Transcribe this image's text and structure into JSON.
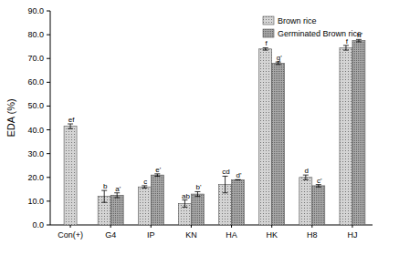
{
  "chart_data": {
    "type": "bar",
    "y_label": "EDA (%)",
    "categories": [
      "Con(+)",
      "G4",
      "IP",
      "KN",
      "HA",
      "HK",
      "H8",
      "HJ"
    ],
    "series": [
      {
        "name": "Brown rice",
        "color": "#d4d4d4",
        "values": [
          41.5,
          12,
          16,
          9,
          17,
          74,
          20,
          74.5
        ],
        "errors": [
          1,
          2.5,
          0.5,
          1.5,
          3.5,
          0.5,
          1,
          1
        ],
        "letters": [
          "ef",
          "b",
          "c",
          "ab",
          "cd",
          "f",
          "d",
          "f"
        ]
      },
      {
        "name": "Germinated Brown rice",
        "color": "#a8a8a8",
        "values": [
          null,
          12.5,
          21,
          13,
          19,
          68,
          16.5,
          77.5
        ],
        "errors": [
          null,
          1,
          0.5,
          1,
          0,
          0.5,
          0.5,
          0.5
        ],
        "letters": [
          null,
          "a'",
          "e'",
          "b'",
          "d'",
          "g'",
          "c'",
          "h'"
        ]
      }
    ],
    "ylim": [
      0,
      90
    ],
    "yticks": [
      {
        "value": 0,
        "label": "0.0"
      },
      {
        "value": 10,
        "label": "10.0"
      },
      {
        "value": 20,
        "label": "20.0"
      },
      {
        "value": 30,
        "label": "30.0"
      },
      {
        "value": 40,
        "label": "40.0"
      },
      {
        "value": 50,
        "label": "50.0"
      },
      {
        "value": 60,
        "label": "60.0"
      },
      {
        "value": 70,
        "label": "70.0"
      },
      {
        "value": 80,
        "label": "80.0"
      },
      {
        "value": 90,
        "label": "90.0"
      }
    ],
    "grid": false,
    "legend": "upper right"
  }
}
